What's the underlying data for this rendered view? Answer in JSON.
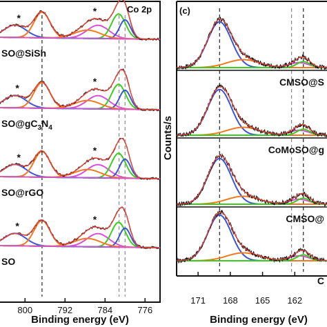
{
  "colors": {
    "raw": "#111111",
    "fit": "#e0443a",
    "blue": "#3c54d8",
    "orange": "#f27a1e",
    "magenta": "#d94fd9",
    "green": "#3ccd1c",
    "background": "#7fd43a",
    "marker_line": "#222222",
    "dashed_grey": "#888888"
  },
  "chart_data": [
    {
      "panel": "b",
      "type": "line",
      "title": "Co 2p",
      "xlabel": "Binding energy (eV)",
      "ylabel": "",
      "x_reversed": true,
      "xlim": [
        805,
        773
      ],
      "xticks": [
        800,
        792,
        784,
        776
      ],
      "dashed_lines_x": [
        796.6,
        781.2,
        780.0
      ],
      "peak_marker": "*",
      "samples": [
        {
          "label_prefix": "SO@SiSh",
          "label_sub": "",
          "label_suffix": "",
          "star_x": [
            801.2,
            786.0
          ]
        },
        {
          "label_prefix": "SO@gC",
          "label_sub": "3",
          "label_suffix": "N",
          "label_sub2": "4",
          "star_x": [
            801.5,
            786.0
          ]
        },
        {
          "label_prefix": "SO@rGO",
          "label_sub": "",
          "label_suffix": "",
          "star_x": [
            801.2,
            786.0
          ]
        },
        {
          "label_prefix": "SO",
          "label_sub": "",
          "label_suffix": "",
          "star_x": [
            801.5,
            786.0
          ]
        }
      ],
      "components": [
        {
          "name": "blue",
          "center": 802.0,
          "width": 2.2,
          "height": 0.3
        },
        {
          "name": "orange",
          "center": 796.6,
          "width": 1.6,
          "height": 0.62
        },
        {
          "name": "magenta",
          "center": 785.4,
          "width": 2.2,
          "height": 0.32
        },
        {
          "name": "green",
          "center": 781.3,
          "width": 1.4,
          "height": 0.6
        },
        {
          "name": "blue2",
          "center": 780.0,
          "width": 1.1,
          "height": 0.46
        },
        {
          "name": "orange2",
          "center": 787.5,
          "width": 2.6,
          "height": 0.2
        }
      ]
    },
    {
      "panel": "c",
      "type": "line",
      "title": "(c)",
      "xlabel": "Binding energy (eV)",
      "ylabel": "Counts/s",
      "x_reversed": true,
      "xlim": [
        173,
        159
      ],
      "xticks": [
        171,
        168,
        165,
        162
      ],
      "dashed_lines_x": [
        169.0,
        162.3,
        161.2
      ],
      "samples": [
        {
          "label": ""
        },
        {
          "label": "CMSO@S"
        },
        {
          "label": "CoMoSO@g"
        },
        {
          "label": "CMSO@"
        },
        {
          "label": "C"
        }
      ],
      "components": [
        {
          "name": "blue",
          "center": 169.0,
          "width": 1.1,
          "height": 0.92
        },
        {
          "name": "orange",
          "center": 166.8,
          "width": 1.5,
          "height": 0.16
        },
        {
          "name": "magenta",
          "center": 161.6,
          "width": 0.9,
          "height": 0.1
        },
        {
          "name": "green",
          "center": 161.2,
          "width": 0.6,
          "height": 0.12
        }
      ]
    }
  ]
}
